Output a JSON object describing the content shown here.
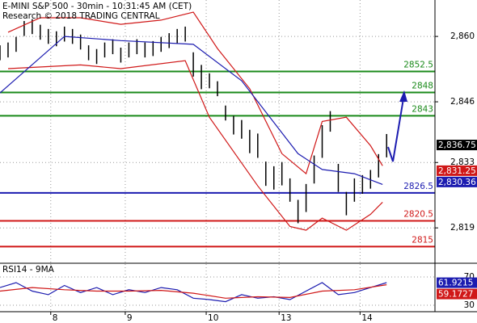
{
  "header": {
    "title": "E-MINI S&P 500 - 30min - 10:31:45 AM (CET)",
    "subtitle": "Research © 2018 TRADING CENTRAL"
  },
  "chart_data": [
    {
      "type": "hilo",
      "color": "#000000",
      "grid": true,
      "xlim": [
        0,
        108
      ],
      "ylim": [
        2811.6,
        2867.8
      ],
      "xticks": [
        {
          "value": 12.6,
          "label": "8"
        },
        {
          "value": 31.1,
          "label": "9"
        },
        {
          "value": 51.2,
          "label": "10"
        },
        {
          "value": 69.3,
          "label": "13"
        },
        {
          "value": 89.4,
          "label": "14"
        }
      ],
      "yticks": [
        {
          "value": 2860,
          "label": "2,860"
        },
        {
          "value": 2846,
          "label": "2,846"
        },
        {
          "value": 2833,
          "label": "2,833"
        },
        {
          "value": 2819,
          "label": "2,819"
        }
      ],
      "x": [
        0,
        2,
        4,
        6,
        8,
        10,
        12,
        14,
        16,
        18,
        20,
        22,
        24,
        26,
        28,
        30,
        32,
        34,
        36,
        38,
        40,
        42,
        44,
        46,
        48,
        50,
        52,
        54,
        56,
        58,
        60,
        62,
        64,
        66,
        68,
        70,
        72,
        74,
        76,
        78,
        80,
        82,
        84,
        86,
        88,
        90,
        92,
        94,
        96
      ],
      "high": [
        2858.1,
        2858.7,
        2859.9,
        2863.3,
        2863.7,
        2862.5,
        2861.6,
        2861.1,
        2862.1,
        2861.6,
        2860.4,
        2858.1,
        2857.3,
        2858.7,
        2859.4,
        2857.6,
        2858.7,
        2859.4,
        2858.7,
        2859,
        2859.9,
        2860.7,
        2861.6,
        2862.1,
        2856.6,
        2853.9,
        2852.1,
        2850.4,
        2845.2,
        2843,
        2842.1,
        2840,
        2839.2,
        2833.2,
        2832.2,
        2833.1,
        2829.6,
        2825,
        2828.4,
        2834.5,
        2841,
        2844,
        2832.7,
        2826.7,
        2829.6,
        2830.3,
        2831.4,
        2834.8,
        2839.1
      ],
      "low": [
        2854.9,
        2855.5,
        2856.7,
        2860.1,
        2860.5,
        2859.3,
        2858.4,
        2857.9,
        2858.9,
        2858.4,
        2857.2,
        2854.9,
        2854.1,
        2855.5,
        2856.2,
        2854.4,
        2855.5,
        2856.2,
        2855.5,
        2855.8,
        2856.7,
        2857.5,
        2858.4,
        2858.9,
        2851.4,
        2848.7,
        2848.9,
        2847.2,
        2842,
        2839,
        2838.1,
        2835,
        2834,
        2828,
        2827.2,
        2828.1,
        2824.6,
        2820,
        2822.4,
        2828.5,
        2834,
        2839.6,
        2826.7,
        2821.7,
        2824.6,
        2826.3,
        2827.4,
        2829.8,
        2834.1
      ],
      "series": [
        {
          "color": "#d01818",
          "x": [
            2,
            10,
            20,
            30,
            40,
            48,
            54,
            62,
            70,
            76,
            80,
            86,
            92,
            95
          ],
          "values": [
            2860.9,
            2864,
            2864,
            2862.6,
            2863.5,
            2865.2,
            2857.4,
            2848.8,
            2834.9,
            2830.6,
            2841.8,
            2842.7,
            2836.6,
            2832.3
          ]
        },
        {
          "color": "#d01818",
          "x": [
            2,
            20,
            30,
            46,
            52,
            64,
            72,
            76,
            80,
            86,
            92,
            95
          ],
          "values": [
            2853.1,
            2853.9,
            2853.1,
            2854.8,
            2842.7,
            2828,
            2819.3,
            2818.5,
            2821.1,
            2818.5,
            2821.9,
            2824.5
          ]
        },
        {
          "color": "#1c1cb0",
          "x": [
            0,
            16,
            30,
            48,
            60,
            74,
            80,
            88,
            95
          ],
          "values": [
            2847.9,
            2860,
            2859.1,
            2858.3,
            2850.5,
            2834.9,
            2831.5,
            2830.6,
            2828.3
          ]
        }
      ],
      "levels": [
        {
          "value": 2852.5,
          "color": "#1a8a1a"
        },
        {
          "value": 2848,
          "color": "#1a8a1a"
        },
        {
          "value": 2843,
          "color": "#1a8a1a"
        },
        {
          "value": 2826.5,
          "color": "#1c1cb0"
        },
        {
          "value": 2820.5,
          "color": "#d01818"
        },
        {
          "value": 2815,
          "color": "#d01818"
        }
      ],
      "price_labels": [
        {
          "value": 2836.75,
          "label": "2,836.75",
          "color": "#000000"
        },
        {
          "value": 2831.25,
          "label": "2,831.25",
          "color": "#d01818"
        },
        {
          "value": 2830.36,
          "label": "2,830.36",
          "color": "#1c1cb0"
        }
      ]
    },
    {
      "type": "line",
      "title": "RSI14 - 9MA",
      "ylim": [
        22,
        88.3
      ],
      "yticks": [
        70,
        30
      ],
      "series": [
        {
          "color": "#1c1cb0",
          "x": [
            0,
            4,
            8,
            12,
            16,
            20,
            24,
            28,
            32,
            36,
            40,
            44,
            48,
            52,
            56,
            60,
            64,
            68,
            72,
            76,
            80,
            84,
            88,
            92,
            96
          ],
          "values": [
            55,
            62,
            50,
            45,
            58,
            48,
            55,
            45,
            52,
            48,
            55,
            52,
            40,
            38,
            35,
            45,
            40,
            42,
            38,
            50,
            62,
            45,
            48,
            55,
            62
          ]
        },
        {
          "color": "#d01818",
          "x": [
            0,
            8,
            16,
            24,
            32,
            40,
            48,
            56,
            64,
            72,
            80,
            88,
            96
          ],
          "values": [
            50,
            55,
            52,
            50,
            50,
            51,
            47,
            40,
            42,
            41,
            50,
            52,
            59
          ]
        }
      ],
      "value_boxes": [
        {
          "value": 61.9215,
          "color": "#1c1cb0"
        },
        {
          "value": 59.1727,
          "color": "#d01818"
        }
      ]
    }
  ]
}
